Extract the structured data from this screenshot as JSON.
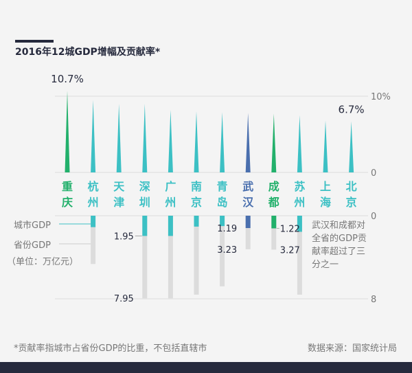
{
  "title": "2016年12城GDP增幅及贡献率*",
  "footnote": "*贡献率指城市占省份GDP的比重，不包括直辖市",
  "source": "数据来源：国家统计局",
  "legend": {
    "city_gdp": "城市GDP",
    "province_gdp": "省份GDP",
    "unit": "（单位：万亿元）"
  },
  "annotation": "武汉和成都对全省的GDP贡献率超过了三分之一",
  "colors": {
    "green": "#22b06b",
    "teal": "#3cc0c4",
    "blue": "#4a6fae",
    "gray": "#dcdcdc",
    "axis_text": "#777777",
    "dark": "#262a3d"
  },
  "chart_data": [
    {
      "type": "bar",
      "name": "growth",
      "unit": "%",
      "categories": [
        "重庆",
        "杭州",
        "天津",
        "深圳",
        "广州",
        "南京",
        "青岛",
        "武汉",
        "成都",
        "苏州",
        "上海",
        "北京"
      ],
      "values": [
        10.7,
        9.5,
        9.0,
        9.0,
        8.2,
        8.0,
        7.9,
        7.8,
        7.7,
        7.5,
        6.8,
        6.7
      ],
      "value_labels": [
        "10.7%",
        "",
        "",
        "",
        "",
        "",
        "",
        "",
        "",
        "",
        "",
        "6.7%"
      ],
      "colors": [
        "green",
        "teal",
        "teal",
        "teal",
        "teal",
        "teal",
        "teal",
        "blue",
        "green",
        "teal",
        "teal",
        "teal"
      ],
      "ylim": [
        0,
        10
      ],
      "ticks": [
        "10%",
        "0"
      ]
    },
    {
      "type": "bar",
      "name": "gdp",
      "unit": "万亿元",
      "categories": [
        "重庆",
        "杭州",
        "天津",
        "深圳",
        "广州",
        "南京",
        "青岛",
        "武汉",
        "成都",
        "苏州",
        "上海",
        "北京"
      ],
      "series": [
        {
          "name": "城市GDP",
          "values": [
            null,
            1.1,
            null,
            1.95,
            1.95,
            1.05,
            1.0,
            1.19,
            1.22,
            1.55,
            null,
            null
          ],
          "labels": [
            "",
            "",
            "",
            "1.95",
            "",
            "",
            "",
            "1.19",
            "1.22",
            "",
            "",
            ""
          ]
        },
        {
          "name": "省份GDP",
          "values": [
            null,
            4.65,
            null,
            7.95,
            7.95,
            7.6,
            6.8,
            3.23,
            3.27,
            7.6,
            null,
            null
          ],
          "labels": [
            "",
            "",
            "",
            "7.95",
            "",
            "",
            "",
            "3.23",
            "3.27",
            "",
            "",
            ""
          ]
        }
      ],
      "ylim": [
        0,
        8
      ],
      "ticks": [
        "0",
        "8"
      ]
    }
  ]
}
